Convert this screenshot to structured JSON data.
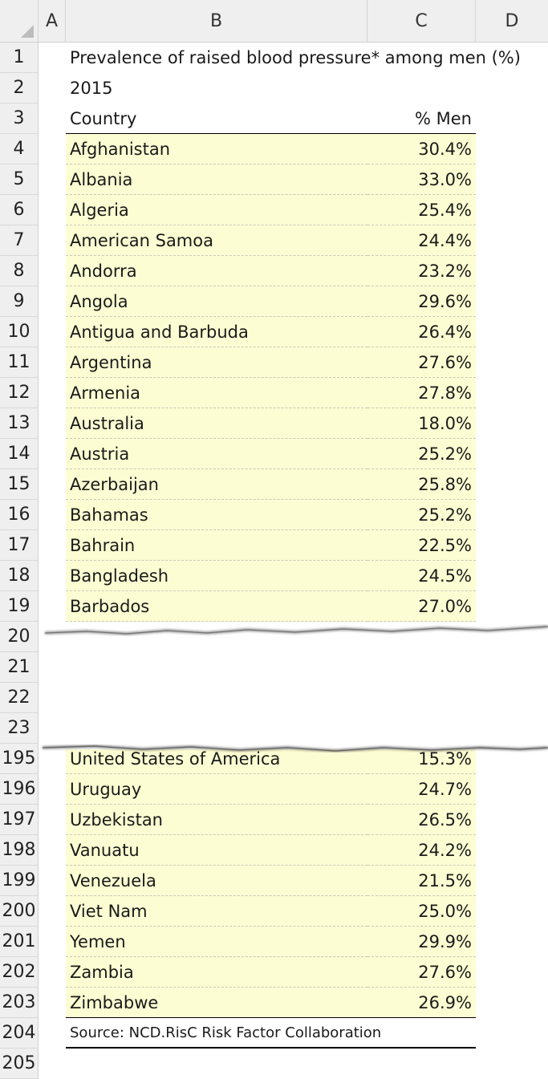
{
  "columns": [
    "A",
    "B",
    "C",
    "D"
  ],
  "title": "Prevalence of raised blood pressure* among men (%)",
  "year": "2015",
  "table_header": {
    "country": "Country",
    "value": "% Men"
  },
  "rows_top": [
    {
      "row": "4",
      "country": "Afghanistan",
      "value": "30.4%"
    },
    {
      "row": "5",
      "country": "Albania",
      "value": "33.0%"
    },
    {
      "row": "6",
      "country": "Algeria",
      "value": "25.4%"
    },
    {
      "row": "7",
      "country": "American Samoa",
      "value": "24.4%"
    },
    {
      "row": "8",
      "country": "Andorra",
      "value": "23.2%"
    },
    {
      "row": "9",
      "country": "Angola",
      "value": "29.6%"
    },
    {
      "row": "10",
      "country": "Antigua and Barbuda",
      "value": "26.4%"
    },
    {
      "row": "11",
      "country": "Argentina",
      "value": "27.6%"
    },
    {
      "row": "12",
      "country": "Armenia",
      "value": "27.8%"
    },
    {
      "row": "13",
      "country": "Australia",
      "value": "18.0%"
    },
    {
      "row": "14",
      "country": "Austria",
      "value": "25.2%"
    },
    {
      "row": "15",
      "country": "Azerbaijan",
      "value": "25.8%"
    },
    {
      "row": "16",
      "country": "Bahamas",
      "value": "25.2%"
    },
    {
      "row": "17",
      "country": "Bahrain",
      "value": "22.5%"
    },
    {
      "row": "18",
      "country": "Bangladesh",
      "value": "24.5%"
    },
    {
      "row": "19",
      "country": "Barbados",
      "value": "27.0%"
    }
  ],
  "rows_bottom": [
    {
      "row": "195",
      "country": "United States of America",
      "value": "15.3%"
    },
    {
      "row": "196",
      "country": "Uruguay",
      "value": "24.7%"
    },
    {
      "row": "197",
      "country": "Uzbekistan",
      "value": "26.5%"
    },
    {
      "row": "198",
      "country": "Vanuatu",
      "value": "24.2%"
    },
    {
      "row": "199",
      "country": "Venezuela",
      "value": "21.5%"
    },
    {
      "row": "200",
      "country": "Viet Nam",
      "value": "25.0%"
    },
    {
      "row": "201",
      "country": "Yemen",
      "value": "29.9%"
    },
    {
      "row": "202",
      "country": "Zambia",
      "value": "27.6%"
    },
    {
      "row": "203",
      "country": "Zimbabwe",
      "value": "26.9%"
    }
  ],
  "row_numbers": [
    "1",
    "2",
    "3",
    "4",
    "5",
    "6",
    "7",
    "8",
    "9",
    "10",
    "11",
    "12",
    "13",
    "14",
    "15",
    "16",
    "17",
    "18",
    "19",
    "20",
    "21",
    "22",
    "23",
    "195",
    "196",
    "197",
    "198",
    "199",
    "200",
    "201",
    "202",
    "203",
    "204",
    "205"
  ],
  "source": "Source: NCD.RisC Risk Factor Collaboration",
  "colors": {
    "data_fill": "#fdfdd3",
    "header_fill": "#efefef",
    "grid": "#d4d4d4"
  }
}
